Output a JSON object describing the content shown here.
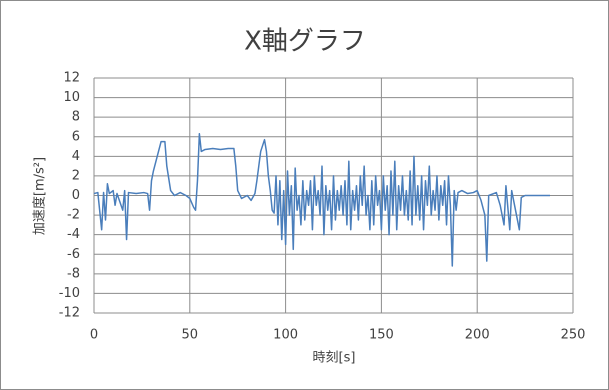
{
  "chart_data": {
    "type": "line",
    "title": "X軸グラフ",
    "x_label": "時刻[s]",
    "y_label": "加速度[m/s²]",
    "x": [
      0,
      2,
      4,
      5,
      6,
      7,
      8,
      10,
      11,
      12,
      15,
      16,
      17,
      18,
      22,
      26,
      28,
      29,
      30,
      31,
      33,
      35,
      37,
      38,
      40,
      42,
      45,
      48,
      50,
      52,
      53,
      54,
      55,
      56,
      58,
      62,
      66,
      70,
      73,
      74,
      75,
      77,
      80,
      82,
      84,
      85,
      87,
      89,
      90,
      91,
      92,
      93,
      94,
      95,
      96,
      97,
      98,
      99,
      100,
      101,
      102,
      103,
      104,
      105,
      106,
      107,
      108,
      109,
      110,
      111,
      112,
      113,
      114,
      115,
      116,
      117,
      118,
      119,
      120,
      121,
      122,
      123,
      124,
      125,
      126,
      127,
      128,
      129,
      130,
      131,
      132,
      133,
      134,
      135,
      136,
      137,
      138,
      139,
      140,
      141,
      142,
      143,
      144,
      145,
      146,
      147,
      148,
      149,
      150,
      151,
      152,
      153,
      154,
      155,
      156,
      157,
      158,
      159,
      160,
      161,
      162,
      163,
      164,
      165,
      166,
      167,
      168,
      169,
      170,
      171,
      172,
      173,
      174,
      175,
      176,
      177,
      178,
      179,
      180,
      181,
      182,
      183,
      184,
      185,
      186,
      187,
      188,
      189,
      190,
      192,
      195,
      198,
      200,
      202,
      204,
      205,
      206,
      210,
      212,
      214,
      215,
      217,
      218,
      220,
      222,
      223,
      225,
      238
    ],
    "values": [
      0.2,
      0.3,
      -3.5,
      0.3,
      -2.5,
      1.2,
      0.2,
      0.5,
      -1,
      0.2,
      -1.5,
      0.5,
      -4.5,
      0.3,
      0.2,
      0.3,
      0.2,
      -1.5,
      1.5,
      2.5,
      4,
      5.5,
      5.5,
      3,
      0.5,
      0,
      0.3,
      0,
      -0.3,
      -1.2,
      -1.5,
      1.5,
      6.3,
      4.5,
      4.7,
      4.8,
      4.7,
      4.8,
      4.8,
      3,
      0.5,
      -0.3,
      0,
      -0.5,
      0.2,
      1.5,
      4.5,
      5.7,
      4.5,
      2,
      0.5,
      -1.5,
      -1.8,
      2,
      -3,
      1.5,
      -4.5,
      0.5,
      -5,
      2.5,
      -2,
      1,
      -5.5,
      2.8,
      -1.5,
      0,
      -3,
      1.5,
      -2.5,
      0.5,
      -1,
      1.5,
      -3.5,
      2,
      -1,
      0.5,
      -2,
      3,
      -4,
      1,
      -1.5,
      0.5,
      -3.5,
      2,
      -2.5,
      0.5,
      -1.5,
      1,
      -2,
      1.5,
      -3,
      3.5,
      -3.5,
      0.5,
      -1.5,
      1,
      -2.5,
      2,
      -1,
      3,
      -2,
      0,
      -3.5,
      1.5,
      -3,
      2,
      -1,
      0.5,
      -3.5,
      2,
      -1.5,
      1,
      -4,
      2.5,
      -2,
      3.5,
      -3.5,
      1,
      -1.5,
      2,
      -2,
      0.5,
      -2.5,
      2.5,
      -3,
      4,
      -2,
      1,
      -2.5,
      2,
      -3.5,
      1.5,
      -1,
      3,
      -2,
      0.5,
      -1.5,
      2,
      -2.5,
      1,
      -1,
      1.5,
      -3,
      2,
      -1,
      -7.2,
      0.5,
      -1.5,
      0.3,
      0.5,
      0.2,
      0.3,
      0.5,
      -0.5,
      -2,
      -6.7,
      0,
      0.3,
      -1,
      -3,
      1,
      -3.5,
      0.5,
      -1.5,
      -3.5,
      -0.2,
      0,
      0
    ],
    "color": "#4a7ebb",
    "xlim": [
      0,
      250
    ],
    "xticks": [
      0,
      50,
      100,
      150,
      200,
      250
    ],
    "ylim": [
      -12,
      12
    ],
    "yticks": [
      -12,
      -10,
      -8,
      -6,
      -4,
      -2,
      0,
      2,
      4,
      6,
      8,
      10,
      12
    ],
    "grid": true
  }
}
